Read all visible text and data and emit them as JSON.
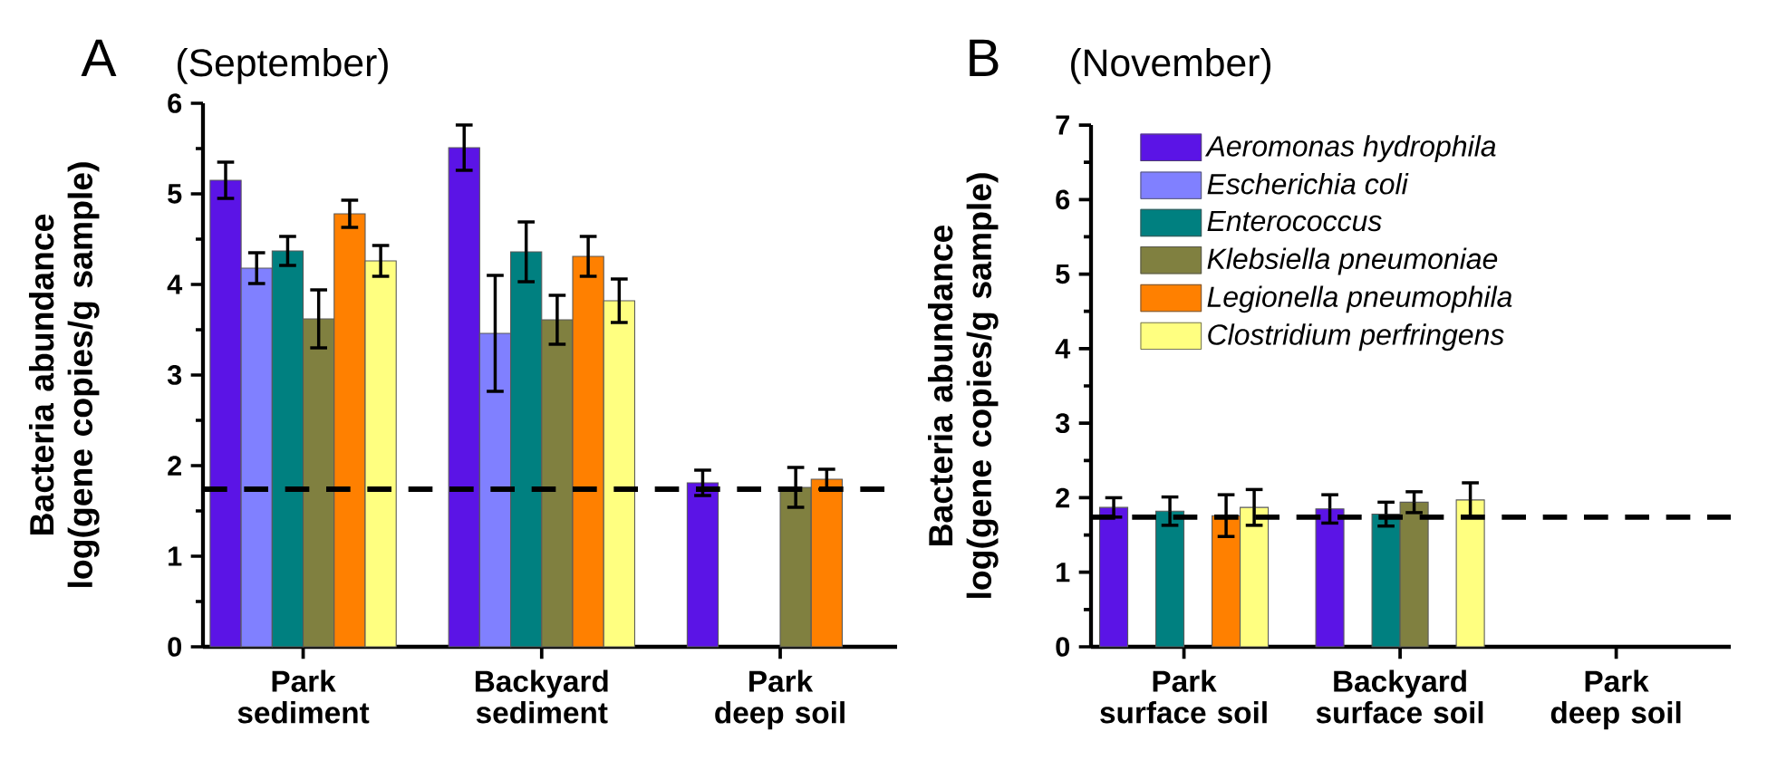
{
  "chart_data": [
    {
      "type": "bar",
      "title": "A",
      "subtitle": "(September)",
      "ylabel": "Bacteria abundance log(gene copies/g sample)",
      "categories": [
        "Park sediment",
        "Backyard sediment",
        "Park deep soil"
      ],
      "ylim": [
        0,
        6
      ],
      "yticks": [
        0,
        1,
        2,
        3,
        4,
        5,
        6
      ],
      "series": [
        {
          "color": "#5b14e6",
          "values": [
            5.15,
            5.51,
            1.81
          ],
          "errors": [
            0.2,
            0.25,
            0.14
          ]
        },
        {
          "color": "#8080ff",
          "values": [
            4.18,
            3.46,
            null
          ],
          "errors": [
            0.17,
            0.64,
            null
          ]
        },
        {
          "color": "#008080",
          "values": [
            4.37,
            4.36,
            null
          ],
          "errors": [
            0.16,
            0.33,
            null
          ]
        },
        {
          "color": "#808040",
          "values": [
            3.62,
            3.61,
            1.76
          ],
          "errors": [
            0.32,
            0.27,
            0.22
          ]
        },
        {
          "color": "#ff8000",
          "values": [
            4.78,
            4.31,
            1.85
          ],
          "errors": [
            0.15,
            0.22,
            0.11
          ]
        },
        {
          "color": "#ffff80",
          "values": [
            4.26,
            3.82,
            null
          ],
          "errors": [
            0.17,
            0.24,
            null
          ]
        }
      ],
      "ref_lines": [
        {
          "axis": "y",
          "value": 1.74,
          "color": "#000000",
          "line_style": "dashed"
        }
      ]
    },
    {
      "type": "bar",
      "title": "B",
      "subtitle": "(November)",
      "ylabel": "Bacteria abundance log(gene copies/g sample)",
      "categories": [
        "Park surface soil",
        "Backyard surface soil",
        "Park deep soil"
      ],
      "ylim": [
        0,
        7
      ],
      "yticks": [
        0,
        1,
        2,
        3,
        4,
        5,
        6,
        7
      ],
      "legend": "top",
      "series": [
        {
          "name": "Aeromonas hydrophila",
          "color": "#5b14e6",
          "values": [
            1.87,
            1.85,
            null
          ],
          "errors": [
            0.13,
            0.19,
            null
          ]
        },
        {
          "name": "Escherichia coli",
          "color": "#8080ff",
          "values": [
            null,
            null,
            null
          ],
          "errors": [
            null,
            null,
            null
          ]
        },
        {
          "name": "Enterococcus",
          "color": "#008080",
          "values": [
            1.82,
            1.78,
            null
          ],
          "errors": [
            0.19,
            0.16,
            null
          ]
        },
        {
          "name": "Klebsiella pneumoniae",
          "color": "#808040",
          "values": [
            null,
            1.94,
            null
          ],
          "errors": [
            null,
            0.14,
            null
          ]
        },
        {
          "name": "Legionella pneumophila",
          "color": "#ff8000",
          "values": [
            1.76,
            null,
            null
          ],
          "errors": [
            0.28,
            null,
            null
          ]
        },
        {
          "name": "Clostridium perfringens",
          "color": "#ffff80",
          "values": [
            1.87,
            1.97,
            null
          ],
          "errors": [
            0.24,
            0.23,
            null
          ]
        }
      ],
      "ref_lines": [
        {
          "axis": "y",
          "value": 1.74,
          "color": "#000000",
          "line_style": "dashed"
        }
      ]
    }
  ]
}
